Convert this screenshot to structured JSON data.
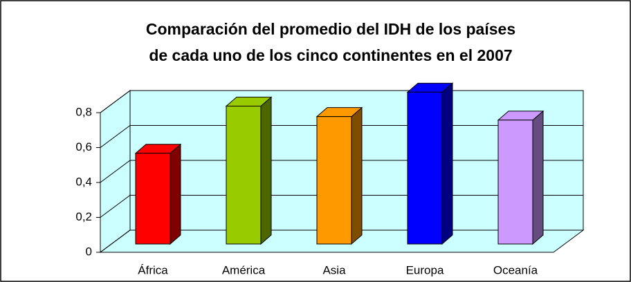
{
  "chart_data": {
    "type": "bar3d",
    "title": [
      "Comparación del promedio del IDH de los países",
      "de cada uno de los cinco continentes en el 2007"
    ],
    "categories": [
      "África",
      "América",
      "Asia",
      "Europa",
      "Oceanía"
    ],
    "values": [
      0.52,
      0.79,
      0.73,
      0.87,
      0.71
    ],
    "colors": [
      "#ff0000",
      "#99cc00",
      "#ff9900",
      "#0000ff",
      "#cc99ff"
    ],
    "ylim": [
      0,
      0.8
    ],
    "yticks": [
      0,
      {
        "value": 0.2,
        "label": "0,2"
      },
      {
        "value": 0.4,
        "label": "0,4"
      },
      {
        "value": 0.6,
        "label": "0,6"
      },
      {
        "value": 0.8,
        "label": "0,8"
      }
    ],
    "grid": true
  }
}
